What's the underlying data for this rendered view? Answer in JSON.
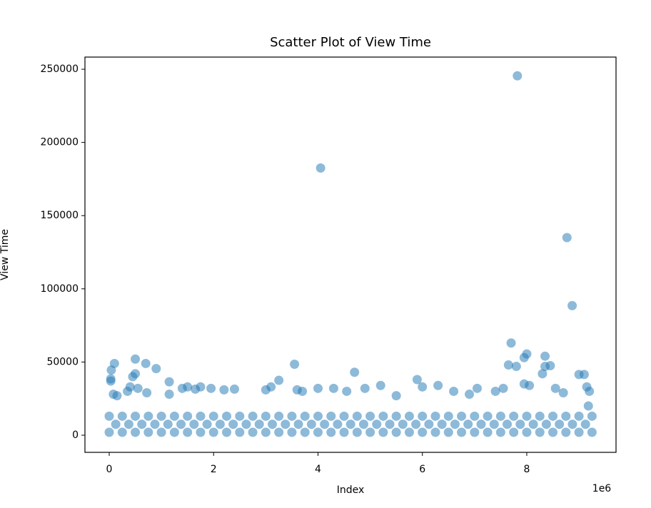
{
  "chart_data": {
    "type": "scatter",
    "title": "Scatter Plot of View Time",
    "x_label": "Index",
    "y_label": "View Time",
    "x_offset_label": "1e6",
    "xlim": [
      -465000,
      9710000
    ],
    "ylim": [
      -11700,
      258300
    ],
    "xticks": [
      {
        "value": 0,
        "label": "0"
      },
      {
        "value": 2000000,
        "label": "2"
      },
      {
        "value": 4000000,
        "label": "4"
      },
      {
        "value": 6000000,
        "label": "6"
      },
      {
        "value": 8000000,
        "label": "8"
      }
    ],
    "yticks": [
      0,
      50000,
      100000,
      150000,
      200000,
      250000
    ],
    "grid": false,
    "series": [
      {
        "color": "#1f77b4",
        "x": [
          0,
          250000,
          500000,
          750000,
          1000000,
          1250000,
          1500000,
          1750000,
          2000000,
          2250000,
          2500000,
          2750000,
          3000000,
          3250000,
          3500000,
          3750000,
          4000000,
          4250000,
          4500000,
          4750000,
          5000000,
          5250000,
          5500000,
          5750000,
          6000000,
          6250000,
          6500000,
          6750000,
          7000000,
          7250000,
          7500000,
          7750000,
          8000000,
          8250000,
          8500000,
          8750000,
          9000000,
          9250000,
          125000,
          375000,
          625000,
          875000,
          1125000,
          1375000,
          1625000,
          1875000,
          2125000,
          2375000,
          2625000,
          2875000,
          3125000,
          3375000,
          3625000,
          3875000,
          4125000,
          4375000,
          4625000,
          4875000,
          5125000,
          5375000,
          5625000,
          5875000,
          6125000,
          6375000,
          6625000,
          6875000,
          7125000,
          7375000,
          7625000,
          7875000,
          8125000,
          8375000,
          8625000,
          8875000,
          9125000,
          0,
          250000,
          500000,
          750000,
          1000000,
          1250000,
          1500000,
          1750000,
          2000000,
          2250000,
          2500000,
          2750000,
          3000000,
          3250000,
          3500000,
          3750000,
          4000000,
          4250000,
          4500000,
          4750000,
          5000000,
          5250000,
          5500000,
          5750000,
          6000000,
          6250000,
          6500000,
          6750000,
          7000000,
          7250000,
          7500000,
          7750000,
          8000000,
          8250000,
          8500000,
          8750000,
          9000000,
          9250000,
          30000,
          30000,
          40000,
          100000,
          80000,
          150000,
          350000,
          400000,
          450000,
          500000,
          500000,
          550000,
          700000,
          720000,
          900000,
          1150000,
          1150000,
          1400000,
          1500000,
          1650000,
          1750000,
          1950000,
          2200000,
          2400000,
          3000000,
          3100000,
          3250000,
          3550000,
          3600000,
          3700000,
          4050000,
          4000000,
          4300000,
          4550000,
          4700000,
          4900000,
          5200000,
          5500000,
          5900000,
          6000000,
          6300000,
          6600000,
          6900000,
          7050000,
          7400000,
          7550000,
          7650000,
          7700000,
          7800000,
          7820000,
          7950000,
          7950000,
          8000000,
          8050000,
          8300000,
          8350000,
          8350000,
          8450000,
          8550000,
          8700000,
          8770000,
          8870000,
          9000000,
          9100000,
          9150000,
          9200000,
          9180000
        ],
        "values": [
          2000,
          2000,
          2000,
          2000,
          2000,
          2000,
          2000,
          2000,
          2000,
          2000,
          2000,
          2000,
          2000,
          2000,
          2000,
          2000,
          2000,
          2000,
          2000,
          2000,
          2000,
          2000,
          2000,
          2000,
          2000,
          2000,
          2000,
          2000,
          2000,
          2000,
          2000,
          2000,
          2000,
          2000,
          2000,
          2000,
          2000,
          2000,
          7500,
          7500,
          7500,
          7500,
          7500,
          7500,
          7500,
          7500,
          7500,
          7500,
          7500,
          7500,
          7500,
          7500,
          7500,
          7500,
          7500,
          7500,
          7500,
          7500,
          7500,
          7500,
          7500,
          7500,
          7500,
          7500,
          7500,
          7500,
          7500,
          7500,
          7500,
          7500,
          7500,
          7500,
          7500,
          7500,
          7500,
          13000,
          13000,
          13000,
          13000,
          13000,
          13000,
          13000,
          13000,
          13000,
          13000,
          13000,
          13000,
          13000,
          13000,
          13000,
          13000,
          13000,
          13000,
          13000,
          13000,
          13000,
          13000,
          13000,
          13000,
          13000,
          13000,
          13000,
          13000,
          13000,
          13000,
          13000,
          13000,
          13000,
          13000,
          13000,
          13000,
          13000,
          13000,
          37000,
          38500,
          44500,
          49000,
          28000,
          27000,
          30000,
          33000,
          40000,
          42000,
          52000,
          32000,
          49000,
          29000,
          45500,
          36500,
          28000,
          32000,
          33000,
          31500,
          33000,
          32000,
          31000,
          31500,
          31000,
          33000,
          37500,
          48500,
          31000,
          30000,
          182500,
          32000,
          32000,
          30000,
          43000,
          32000,
          34000,
          27000,
          38000,
          33000,
          34000,
          30000,
          28000,
          32000,
          30000,
          32000,
          48000,
          63000,
          47000,
          245500,
          53000,
          35000,
          55500,
          34000,
          42000,
          47000,
          54000,
          47500,
          32000,
          29000,
          135000,
          88500,
          41500,
          41500,
          33000,
          30000,
          20000
        ]
      }
    ]
  }
}
